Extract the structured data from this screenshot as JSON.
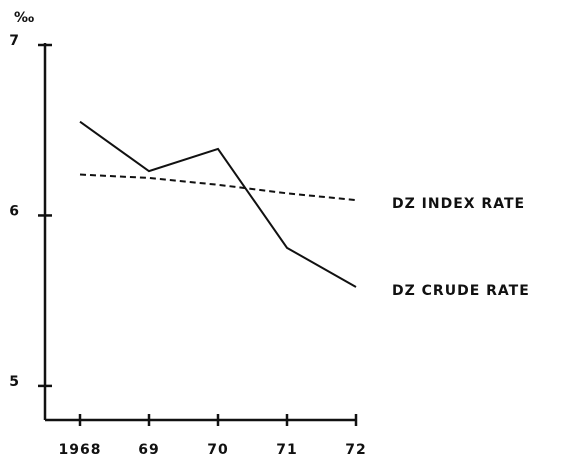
{
  "chart_data": {
    "type": "line",
    "y_label": "‰",
    "categories": [
      "1968",
      "69",
      "70",
      "71",
      "72"
    ],
    "series": [
      {
        "name": "DZ CRUDE RATE",
        "color": "#111111",
        "dash": "none",
        "values": [
          6.55,
          6.26,
          6.39,
          5.81,
          5.58
        ]
      },
      {
        "name": "DZ INDEX RATE",
        "color": "#111111",
        "dash": "6 4",
        "values": [
          6.24,
          6.22,
          6.18,
          6.13,
          6.09
        ]
      }
    ],
    "ylim": [
      4.8,
      7
    ],
    "yticks": [
      5,
      6,
      7
    ],
    "grid": false
  }
}
